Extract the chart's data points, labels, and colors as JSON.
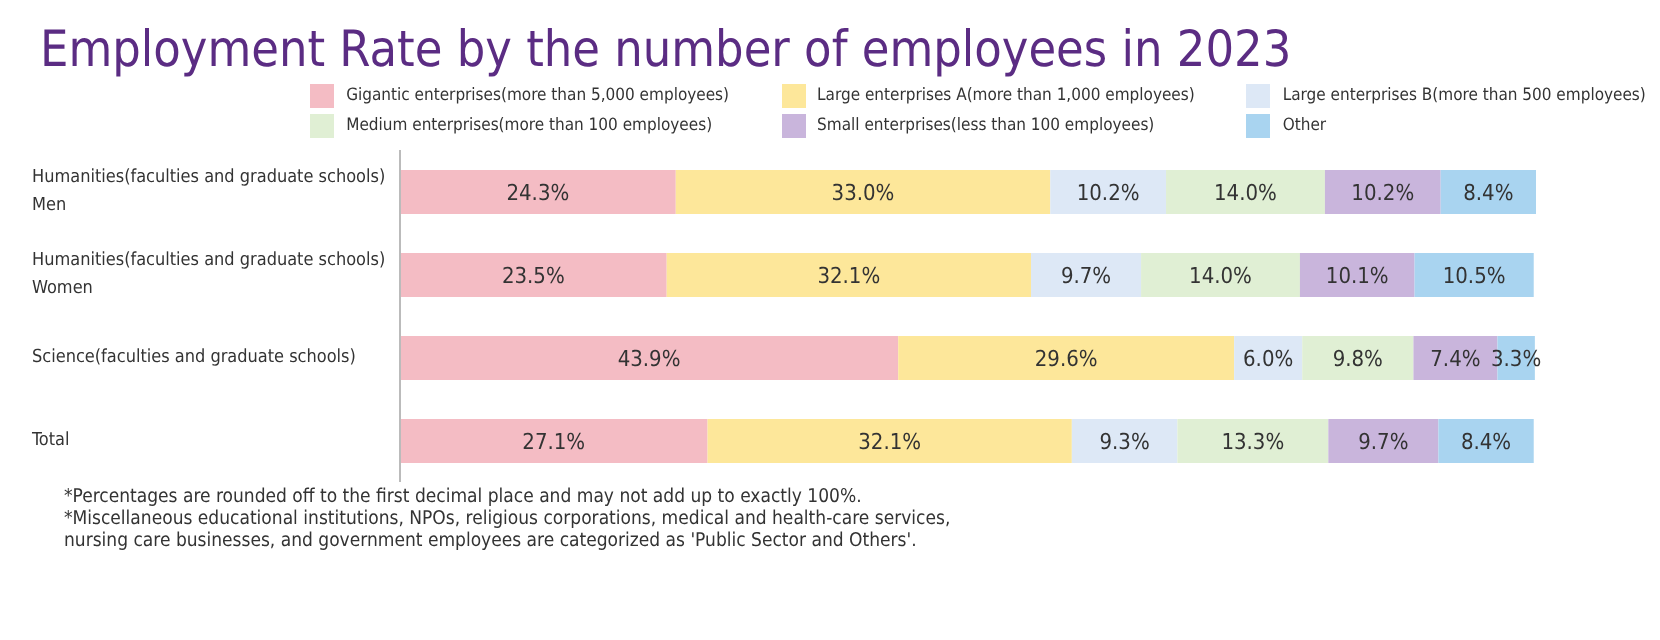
{
  "chart_data": {
    "type": "bar",
    "orientation": "horizontal",
    "stacked": true,
    "title": "Employment Rate by the number of employees in 2023",
    "categories": [
      "Humanities(faculties and graduate schools)\nMen",
      "Humanities(faculties and graduate schools)\nWomen",
      "Science(faculties and graduate schools)",
      "Total"
    ],
    "series": [
      {
        "name": "Gigantic enterprises(more than 5,000 employees)",
        "color": "#f4bcc4",
        "values": [
          24.3,
          23.5,
          43.9,
          27.1
        ],
        "value_labels": [
          "24.3%",
          "23.5%",
          "43.9%",
          "27.1%"
        ]
      },
      {
        "name": "Large enterprises A(more than 1,000 employees)",
        "color": "#fde79a",
        "values": [
          33.0,
          32.1,
          29.6,
          32.1
        ],
        "value_labels": [
          "33.0%",
          "32.1%",
          "29.6%",
          "32.1%"
        ]
      },
      {
        "name": "Large enterprises B(more than 500 employees)",
        "color": "#dde8f6",
        "values": [
          10.2,
          9.7,
          6.0,
          9.3
        ],
        "value_labels": [
          "10.2%",
          "9.7%",
          "6.0%",
          "9.3%"
        ]
      },
      {
        "name": "Medium enterprises(more than 100 employees)",
        "color": "#e0efd4",
        "values": [
          14.0,
          14.0,
          9.8,
          13.3
        ],
        "value_labels": [
          "14.0%",
          "14.0%",
          "9.8%",
          "13.3%"
        ]
      },
      {
        "name": "Small enterprises(less than 100 employees)",
        "color": "#c9b5dc",
        "values": [
          10.2,
          10.1,
          7.4,
          9.7
        ],
        "value_labels": [
          "10.2%",
          "10.1%",
          "7.4%",
          "9.7%"
        ]
      },
      {
        "name": "Other",
        "color": "#a9d4f0",
        "values": [
          8.4,
          10.5,
          3.3,
          8.4
        ],
        "value_labels": [
          "8.4%",
          "10.5%",
          "3.3%",
          "8.4%"
        ]
      }
    ],
    "legend": "top",
    "tick_labels": "y",
    "grid": false,
    "annotations": [
      "*Percentages are rounded off to the first decimal place and may not add up to exactly 100%.",
      "*Miscellaneous educational institutions, NPOs, religious corporations, medical and health-care services, nursing care businesses, and government employees are categorized as 'Public Sector and Others'."
    ]
  }
}
